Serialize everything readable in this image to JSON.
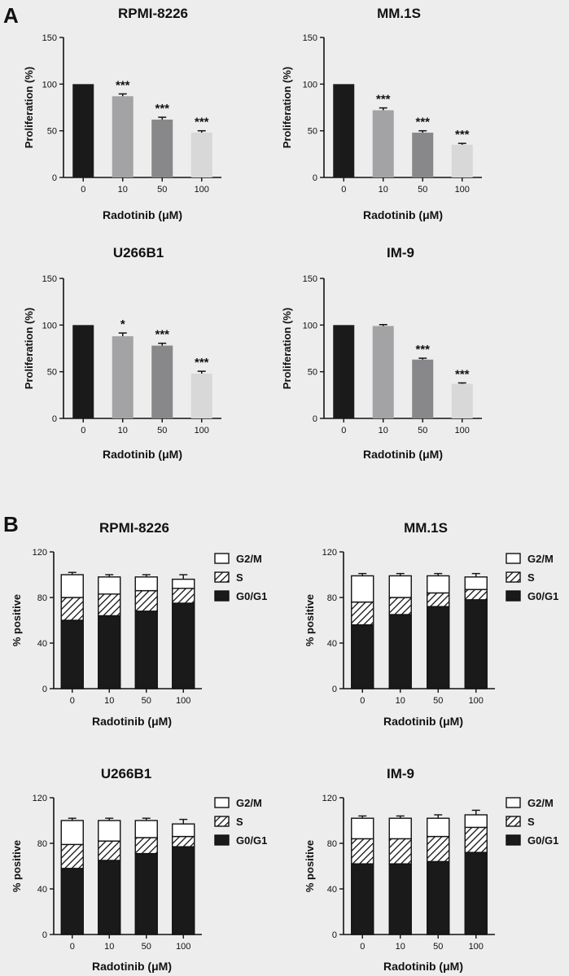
{
  "panels": [
    {
      "letter": "A"
    },
    {
      "letter": "B"
    }
  ],
  "colors": {
    "bar_0": "#1a1a1a",
    "bar_10": "#a3a3a5",
    "bar_50": "#88888a",
    "bar_100": "#d8d8d8",
    "g0g1": "#1a1a1a",
    "s_fill": "#ffffff",
    "g2m_fill": "#ffffff",
    "axis": "#111111",
    "background": "#ededed"
  },
  "chart_data": [
    {
      "id": "A1",
      "type": "bar",
      "panel": "A",
      "title": "RPMI-8226",
      "categories": [
        "0",
        "10",
        "50",
        "100"
      ],
      "values": [
        100,
        87,
        62,
        48
      ],
      "errors": [
        0,
        2.5,
        2.5,
        2
      ],
      "significance": [
        "",
        "***",
        "***",
        "***"
      ],
      "ylabel": "Proliferation (%)",
      "xlabel_prefix": "Radotinib (",
      "xlabel_unit": "μM",
      "xlabel_suffix": ")",
      "ylim": [
        0,
        150
      ],
      "yticks": [
        "0",
        "50",
        "100",
        "150"
      ]
    },
    {
      "id": "A2",
      "type": "bar",
      "panel": "A",
      "title": "MM.1S",
      "categories": [
        "0",
        "10",
        "50",
        "100"
      ],
      "values": [
        100,
        72,
        48,
        35
      ],
      "errors": [
        0,
        2.5,
        2,
        1.5
      ],
      "significance": [
        "",
        "***",
        "***",
        "***"
      ],
      "ylabel": "Proliferation (%)",
      "xlabel_prefix": "Radotinib (",
      "xlabel_unit": "μM",
      "xlabel_suffix": ")",
      "ylim": [
        0,
        150
      ],
      "yticks": [
        "0",
        "50",
        "100",
        "150"
      ]
    },
    {
      "id": "A3",
      "type": "bar",
      "panel": "A",
      "title": "U266B1",
      "categories": [
        "0",
        "10",
        "50",
        "100"
      ],
      "values": [
        100,
        88,
        78,
        48
      ],
      "errors": [
        0,
        3.5,
        2.5,
        2.5
      ],
      "significance": [
        "",
        "*",
        "***",
        "***"
      ],
      "ylabel": "Proliferation (%)",
      "xlabel_prefix": "Radotinib (",
      "xlabel_unit": "μM",
      "xlabel_suffix": ")",
      "ylim": [
        0,
        150
      ],
      "yticks": [
        "0",
        "50",
        "100",
        "150"
      ]
    },
    {
      "id": "A4",
      "type": "bar",
      "panel": "A",
      "title": "IM-9",
      "categories": [
        "0",
        "10",
        "50",
        "100"
      ],
      "values": [
        100,
        99,
        63,
        37
      ],
      "errors": [
        0,
        1.5,
        1.5,
        1
      ],
      "significance": [
        "",
        "",
        "***",
        "***"
      ],
      "ylabel": "Proliferation (%)",
      "xlabel_prefix": "Radotinib (",
      "xlabel_unit": "μM",
      "xlabel_suffix": ")",
      "ylim": [
        0,
        150
      ],
      "yticks": [
        "0",
        "50",
        "100",
        "150"
      ]
    },
    {
      "id": "B1",
      "type": "bar",
      "stacked": true,
      "panel": "B",
      "title": "RPMI-8226",
      "categories": [
        "0",
        "10",
        "50",
        "100"
      ],
      "series": [
        {
          "name": "G0/G1",
          "values": [
            60,
            64,
            68,
            75
          ],
          "errors": [
            2,
            2,
            2,
            3
          ]
        },
        {
          "name": "S",
          "values": [
            20,
            19,
            18,
            13
          ],
          "errors": [
            2,
            1,
            1,
            2
          ]
        },
        {
          "name": "G2/M",
          "values": [
            20,
            15,
            12,
            8
          ],
          "errors": [
            2,
            2,
            2,
            4
          ]
        }
      ],
      "legend": [
        "G2/M",
        "S",
        "G0/G1"
      ],
      "ylabel": "% positive",
      "xlabel_prefix": "Radotinib (",
      "xlabel_unit": "μM",
      "xlabel_suffix": ")",
      "ylim": [
        0,
        120
      ],
      "yticks": [
        "0",
        "40",
        "80",
        "120"
      ]
    },
    {
      "id": "B2",
      "type": "bar",
      "stacked": true,
      "panel": "B",
      "title": "MM.1S",
      "categories": [
        "0",
        "10",
        "50",
        "100"
      ],
      "series": [
        {
          "name": "G0/G1",
          "values": [
            56,
            65,
            72,
            78
          ],
          "errors": [
            1,
            1,
            2,
            3
          ]
        },
        {
          "name": "S",
          "values": [
            20,
            15,
            12,
            9
          ],
          "errors": [
            2,
            1,
            2,
            2
          ]
        },
        {
          "name": "G2/M",
          "values": [
            23,
            19,
            15,
            11
          ],
          "errors": [
            2,
            2,
            2,
            3
          ]
        }
      ],
      "legend": [
        "G2/M",
        "S",
        "G0/G1"
      ],
      "ylabel": "% positive",
      "xlabel_prefix": "Radotinib (",
      "xlabel_unit": "μM",
      "xlabel_suffix": ")",
      "ylim": [
        0,
        120
      ],
      "yticks": [
        "0",
        "40",
        "80",
        "120"
      ]
    },
    {
      "id": "B3",
      "type": "bar",
      "stacked": true,
      "panel": "B",
      "title": "U266B1",
      "categories": [
        "0",
        "10",
        "50",
        "100"
      ],
      "series": [
        {
          "name": "G0/G1",
          "values": [
            58,
            65,
            71,
            77
          ],
          "errors": [
            1,
            1,
            2,
            2
          ]
        },
        {
          "name": "S",
          "values": [
            21,
            17,
            14,
            9
          ],
          "errors": [
            2,
            1,
            2,
            2
          ]
        },
        {
          "name": "G2/M",
          "values": [
            21,
            18,
            15,
            11
          ],
          "errors": [
            2,
            2,
            2,
            4
          ]
        }
      ],
      "legend": [
        "G2/M",
        "S",
        "G0/G1"
      ],
      "ylabel": "% positive",
      "xlabel_prefix": "Radotinib (",
      "xlabel_unit": "μM",
      "xlabel_suffix": ")",
      "ylim": [
        0,
        120
      ],
      "yticks": [
        "0",
        "40",
        "80",
        "120"
      ]
    },
    {
      "id": "B4",
      "type": "bar",
      "stacked": true,
      "panel": "B",
      "title": "IM-9",
      "categories": [
        "0",
        "10",
        "50",
        "100"
      ],
      "series": [
        {
          "name": "G0/G1",
          "values": [
            62,
            62,
            64,
            72
          ],
          "errors": [
            1,
            1,
            1,
            2
          ]
        },
        {
          "name": "S",
          "values": [
            22,
            22,
            22,
            22
          ],
          "errors": [
            2,
            2,
            3,
            2
          ]
        },
        {
          "name": "G2/M",
          "values": [
            18,
            18,
            16,
            11
          ],
          "errors": [
            2,
            2,
            3,
            4
          ]
        }
      ],
      "legend": [
        "G2/M",
        "S",
        "G0/G1"
      ],
      "ylabel": "% positive",
      "xlabel_prefix": "Radotinib (",
      "xlabel_unit": "μM",
      "xlabel_suffix": ")",
      "ylim": [
        0,
        120
      ],
      "yticks": [
        "0",
        "40",
        "80",
        "120"
      ]
    }
  ]
}
